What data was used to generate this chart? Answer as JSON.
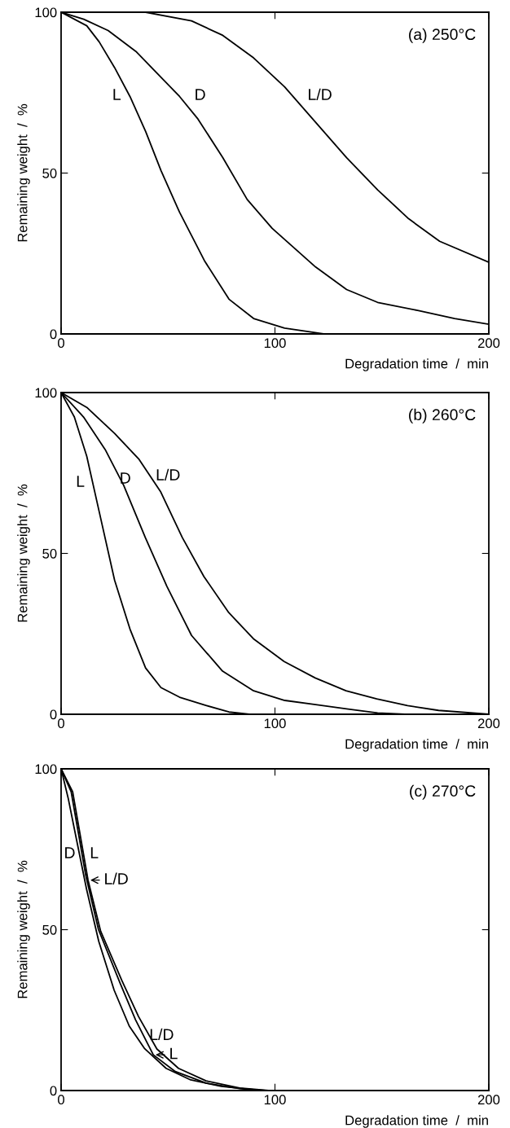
{
  "chart_data": [
    {
      "type": "line",
      "title": "(a) 250°C",
      "xlabel": "Degradation time  /  min",
      "ylabel": "Remaining weight  /  %",
      "xlim": [
        0,
        200
      ],
      "ylim": [
        0,
        100
      ],
      "xticks": [
        0,
        100,
        200
      ],
      "yticks": [
        0,
        50,
        100
      ],
      "line_style": "solid",
      "marker": "none",
      "series": [
        {
          "color": "#000000",
          "x": [
            0,
            12,
            17.8,
            25,
            32.2,
            39.6,
            46.7,
            55.4,
            67,
            78.5,
            90,
            104.5,
            123
          ],
          "values": [
            100,
            95.8,
            90.8,
            82.8,
            73.8,
            62.8,
            50.8,
            37.8,
            22.8,
            10.8,
            4.8,
            1.8,
            0
          ]
        },
        {
          "color": "#000000",
          "x": [
            0,
            10.6,
            22,
            35,
            46.7,
            55.4,
            64,
            75.6,
            87,
            98.7,
            119,
            133.5,
            148,
            166.7,
            184,
            200
          ],
          "values": [
            100,
            97.8,
            94.3,
            87.8,
            79.8,
            73.8,
            66.8,
            54.8,
            41.8,
            32.8,
            20.8,
            13.8,
            9.8,
            7.3,
            4.8,
            3
          ]
        },
        {
          "color": "#000000",
          "x": [
            0,
            39.5,
            61,
            75.6,
            90,
            104.5,
            119,
            133.5,
            148,
            162.5,
            177,
            200
          ],
          "values": [
            100,
            100,
            97.3,
            92.8,
            85.8,
            76.8,
            65.8,
            54.8,
            44.8,
            35.8,
            28.8,
            22.3
          ]
        }
      ],
      "annotations": [
        "L",
        "D",
        "L/D"
      ]
    },
    {
      "type": "line",
      "title": "(b) 260°C",
      "xlabel": "Degradation time  /  min",
      "ylabel": "Remaining weight  /  %",
      "xlim": [
        0,
        200
      ],
      "ylim": [
        0,
        100
      ],
      "xticks": [
        0,
        100,
        200
      ],
      "yticks": [
        0,
        50,
        100
      ],
      "line_style": "solid",
      "marker": "none",
      "series": [
        {
          "color": "#000000",
          "x": [
            0,
            6.2,
            12,
            17.8,
            25,
            32.2,
            39.5,
            46.7,
            55.4,
            68,
            78.5,
            88.5
          ],
          "values": [
            100,
            92.4,
            80.2,
            63,
            41.7,
            26.5,
            14.4,
            8.3,
            5.3,
            2.7,
            0.7,
            0
          ]
        },
        {
          "color": "#000000",
          "x": [
            0,
            10.5,
            20.6,
            29.3,
            39.4,
            49.5,
            61,
            75.5,
            90,
            104.6,
            119,
            133.5,
            148,
            162.5
          ],
          "values": [
            100,
            92.4,
            82.3,
            71.1,
            54.9,
            39.7,
            24.5,
            13.4,
            7.3,
            4.3,
            3,
            1.7,
            0.4,
            0
          ]
        },
        {
          "color": "#000000",
          "x": [
            0,
            12,
            25,
            36.5,
            46.6,
            56.7,
            66.8,
            78.4,
            89.9,
            104.3,
            118.8,
            133.2,
            147.6,
            162,
            176.5,
            200
          ],
          "values": [
            100,
            95.4,
            87.3,
            79.2,
            69.1,
            54.9,
            42.8,
            31.6,
            23.5,
            16.4,
            11.3,
            7.3,
            4.8,
            2.7,
            1.2,
            0
          ]
        }
      ],
      "annotations": [
        "L",
        "D",
        "L/D"
      ]
    },
    {
      "type": "line",
      "title": "(c) 270°C",
      "xlabel": "Degradation time  /  min",
      "ylabel": "Remaining weight  /  %",
      "xlim": [
        0,
        200
      ],
      "ylim": [
        0,
        100
      ],
      "xticks": [
        0,
        100,
        200
      ],
      "yticks": [
        0,
        50,
        100
      ],
      "line_style": "solid",
      "marker": "none",
      "series": [
        {
          "color": "#000000",
          "x": [
            0,
            3.3,
            7.6,
            11.9,
            17.6,
            24.8,
            31.9,
            39.1,
            49.1,
            60.6,
            74.9,
            93.6
          ],
          "values": [
            100,
            90.9,
            76.7,
            62.6,
            46.4,
            31.2,
            20,
            13,
            6.9,
            3.3,
            1.3,
            0
          ]
        },
        {
          "color": "#000000",
          "x": [
            0,
            4.7,
            11.5,
            17.5,
            27.7,
            34.8,
            43.1,
            53.4,
            67.8,
            83.5,
            96.4
          ],
          "values": [
            100,
            92.9,
            67,
            50,
            33.2,
            22,
            11.1,
            5.9,
            2.3,
            0.6,
            0
          ]
        },
        {
          "color": "#000000",
          "x": [
            0,
            5.4,
            12.6,
            18.5,
            28.4,
            36.2,
            44.8,
            54.9,
            67.8,
            83.5,
            97.8
          ],
          "values": [
            100,
            92.9,
            65.4,
            49.5,
            34.2,
            23,
            12.9,
            6.9,
            3,
            0.8,
            0
          ]
        }
      ],
      "annotations": [
        "D",
        "L",
        {
          "text": "L/D",
          "x": 12.6,
          "y": 65.4
        },
        "L/D",
        {
          "text": "L",
          "x": 43.1,
          "y": 11.1
        }
      ]
    }
  ]
}
